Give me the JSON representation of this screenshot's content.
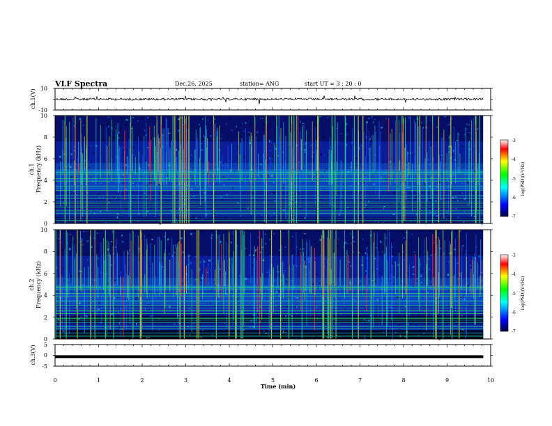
{
  "header": {
    "title": "VLF Spectra",
    "date": "Dec.26, 2025",
    "station": "station= ANG",
    "start_time": "start UT =  3 : 20 : 0"
  },
  "chart_data": [
    {
      "type": "line",
      "name": "ch1-waveform",
      "ylabel": "ch.1(V)",
      "ylim": [
        -10,
        10
      ],
      "y_ticks": [
        "10",
        "-10"
      ],
      "baseline": 0
    },
    {
      "type": "heatmap",
      "name": "ch1-spectrogram",
      "ylabel_line1": "ch.1",
      "ylabel_line2": "Frequency (kHz)",
      "ylim": [
        0,
        10
      ],
      "y_ticks": [
        "0",
        "2",
        "4",
        "6",
        "8",
        "10"
      ],
      "colorbar": {
        "label": "log(PSD)(V²/Hz)",
        "range": [
          -7,
          -3
        ],
        "ticks": [
          "-3",
          "-4",
          "-5",
          "-6",
          "-7"
        ]
      }
    },
    {
      "type": "heatmap",
      "name": "ch2-spectrogram",
      "ylabel_line1": "ch.2",
      "ylabel_line2": "Frequency (kHz)",
      "ylim": [
        0,
        10
      ],
      "y_ticks": [
        "0",
        "2",
        "4",
        "6",
        "8",
        "10"
      ],
      "colorbar": {
        "label": "log(PSD)(V²/Hz)",
        "range": [
          -7,
          -3
        ],
        "ticks": [
          "-3",
          "-4",
          "-5",
          "-6",
          "-7"
        ]
      }
    },
    {
      "type": "line",
      "name": "ch3-waveform",
      "ylabel": "ch.3(V)",
      "ylim": [
        -5,
        5
      ],
      "y_ticks": [
        "5",
        "0",
        "-5"
      ],
      "baseline": -0.6
    }
  ],
  "x_axis": {
    "label": "Time (min)",
    "range": [
      0,
      10
    ],
    "data_end": 9.83,
    "ticks": [
      "0",
      "1",
      "2",
      "3",
      "4",
      "5",
      "6",
      "7",
      "8",
      "9",
      "10"
    ]
  },
  "colors": {
    "spectro_background": "#0a0f7a",
    "hum_line": "#33dd66",
    "colormap": [
      "#ff00ff",
      "#ff0000",
      "#ffff00",
      "#00ff00",
      "#00ffff",
      "#0000ff",
      "#000044"
    ]
  }
}
